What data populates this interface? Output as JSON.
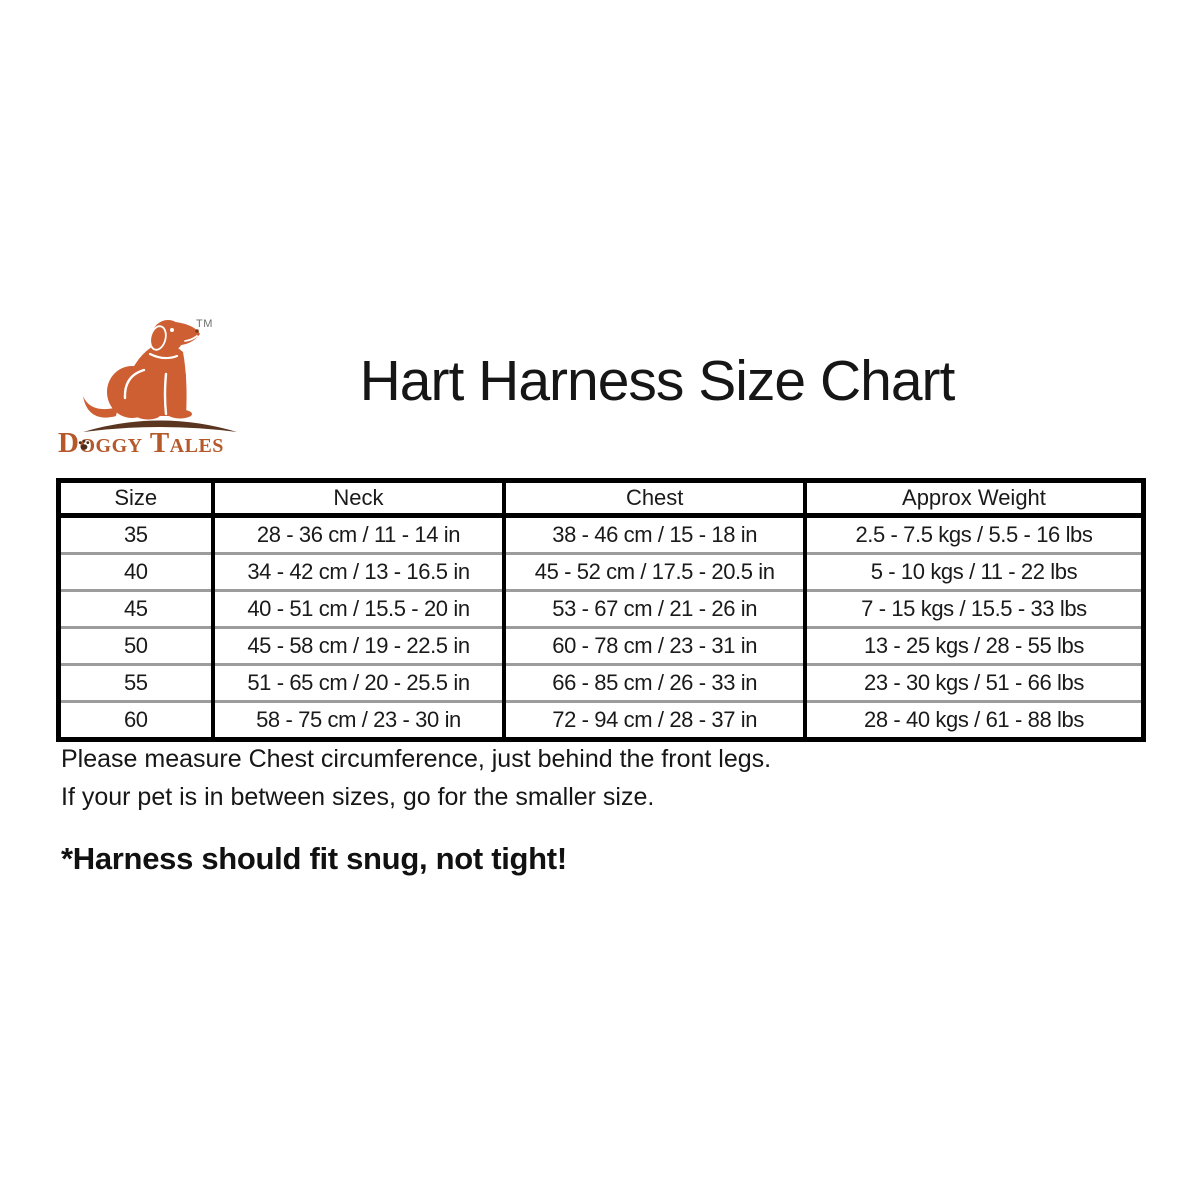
{
  "logo": {
    "brand_word_1": "Doggy",
    "brand_word_2": "Tales",
    "trademark": "TM",
    "colors": {
      "dog_orange": "#cd5f33",
      "ground_brown": "#5a3520",
      "wordmark_orange": "#b5582a",
      "paw_brown": "#4a2e1a"
    }
  },
  "title": "Hart Harness Size Chart",
  "size_table": {
    "headers": [
      "Size",
      "Neck",
      "Chest",
      "Approx Weight"
    ],
    "rows": [
      [
        "35",
        "28 - 36 cm / 11 - 14 in",
        "38 - 46 cm / 15 - 18 in",
        "2.5 - 7.5 kgs / 5.5 - 16 lbs"
      ],
      [
        "40",
        "34 - 42 cm / 13 - 16.5 in",
        "45 - 52 cm / 17.5 - 20.5 in",
        "5 - 10 kgs / 11 - 22 lbs"
      ],
      [
        "45",
        "40 - 51 cm / 15.5 - 20 in",
        "53 - 67 cm / 21 - 26 in",
        "7 - 15 kgs / 15.5 - 33 lbs"
      ],
      [
        "50",
        "45 - 58 cm / 19 - 22.5 in",
        "60 - 78 cm / 23 - 31 in",
        "13 - 25 kgs / 28 - 55 lbs"
      ],
      [
        "55",
        "51 - 65 cm / 20 - 25.5 in",
        "66 - 85 cm / 26 - 33 in",
        "23 - 30 kgs / 51 - 66 lbs"
      ],
      [
        "60",
        "58 - 75 cm / 23 - 30 in",
        "72 - 94 cm / 28 - 37 in",
        "28 - 40 kgs / 61 - 88 lbs"
      ]
    ],
    "column_widths_percent": [
      14.2,
      26.9,
      27.7,
      31.2
    ],
    "border_color": "#000000",
    "row_divider_color": "#9c9c9c"
  },
  "notes": {
    "line1": "Please measure Chest circumference, just behind the front legs.",
    "line2": "If your pet is in between sizes, go for the smaller size.",
    "emphasis": "*Harness should fit snug, not tight!"
  }
}
